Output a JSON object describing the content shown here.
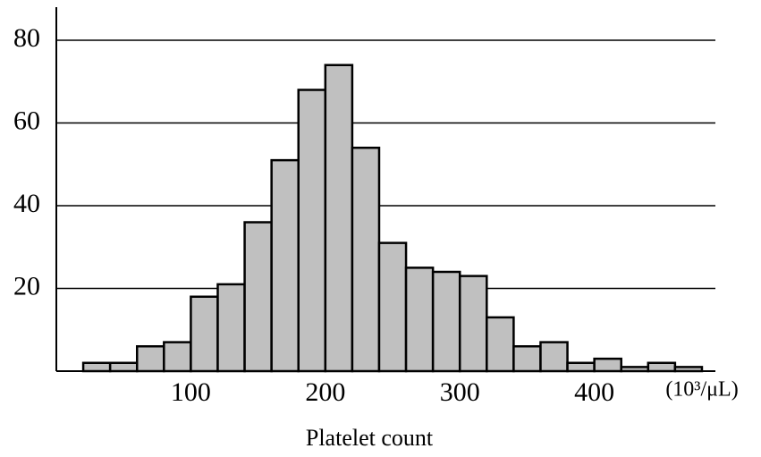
{
  "chart_data": {
    "type": "histogram",
    "xlabel": "Platelet count",
    "x_unit": "(10³/μL)",
    "bins": [
      20,
      40,
      60,
      80,
      100,
      120,
      140,
      160,
      180,
      200,
      220,
      240,
      260,
      280,
      300,
      320,
      340,
      360,
      380,
      400,
      420,
      440,
      460,
      480
    ],
    "values": [
      2,
      2,
      6,
      7,
      18,
      21,
      36,
      51,
      68,
      74,
      54,
      31,
      25,
      24,
      23,
      13,
      6,
      7,
      2,
      3,
      1,
      2,
      1
    ],
    "color": "#c0c0c0",
    "xlim": [
      0,
      490
    ],
    "ylim": [
      0,
      88
    ],
    "xticks": [
      100,
      200,
      300,
      400
    ],
    "yticks": [
      20,
      40,
      60,
      80
    ],
    "grid": true
  }
}
